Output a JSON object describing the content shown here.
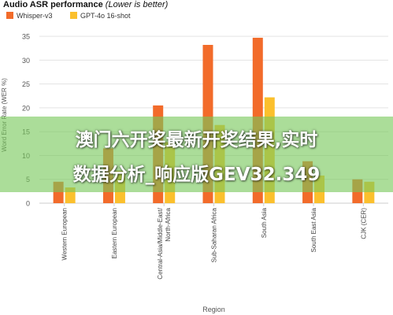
{
  "chart_data": {
    "type": "bar",
    "title": "Audio ASR performance",
    "title_note": "(Lower is better)",
    "xlabel": "Region",
    "ylabel": "Word Error Rate (WER %)",
    "ylim": [
      0,
      37
    ],
    "yticks": [
      0,
      5,
      10,
      15,
      20,
      25,
      30,
      35
    ],
    "grid": true,
    "legend_position": "top-left",
    "categories": [
      "Western European",
      "Eastern European",
      "Central-Asia/Middle-East/\nNorth-Africa",
      "Sub-Saharan Africa",
      "South Asia",
      "South East Asia",
      "CJK (CER)"
    ],
    "series": [
      {
        "name": "Whisper-v3",
        "color": "#f26b2a",
        "values": [
          4.5,
          11.5,
          20.5,
          33.2,
          34.7,
          8.8,
          5.0
        ]
      },
      {
        "name": "GPT-4o 16-shot",
        "color": "#fbc02d",
        "values": [
          3.3,
          6.8,
          12.8,
          16.4,
          22.2,
          5.8,
          4.5
        ]
      }
    ]
  },
  "overlay": {
    "line1": "澳门六开奖最新开奖结果,实时",
    "line2": "数据分析_响应版GEV32.349"
  }
}
